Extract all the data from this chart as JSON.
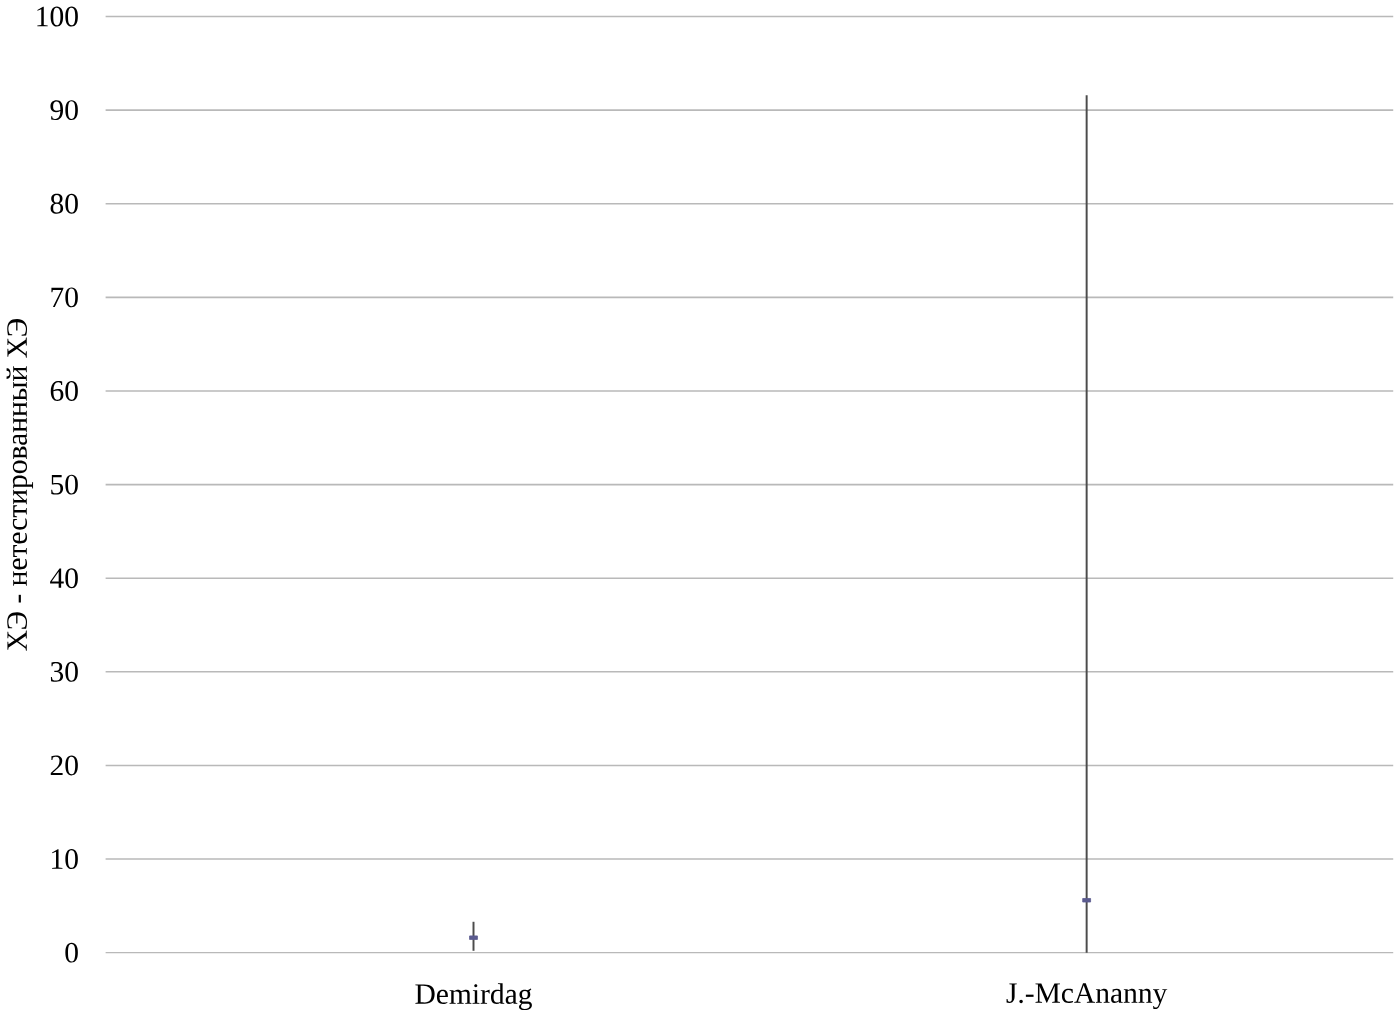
{
  "chart_data": {
    "type": "scatter",
    "ylabel": "ХЭ - нетестированный ХЭ",
    "categories": [
      "Demirdag",
      "J.-McAnanny"
    ],
    "values": [
      1.6,
      5.6
    ],
    "errors": [
      [
        0.2,
        3.3
      ],
      [
        0,
        91.6
      ]
    ],
    "color": "#5b5b8f",
    "ylim": [
      0,
      100
    ],
    "yticks": [
      0,
      10,
      20,
      30,
      40,
      50,
      60,
      70,
      80,
      90,
      100
    ],
    "grid": "y",
    "marker": "square"
  }
}
